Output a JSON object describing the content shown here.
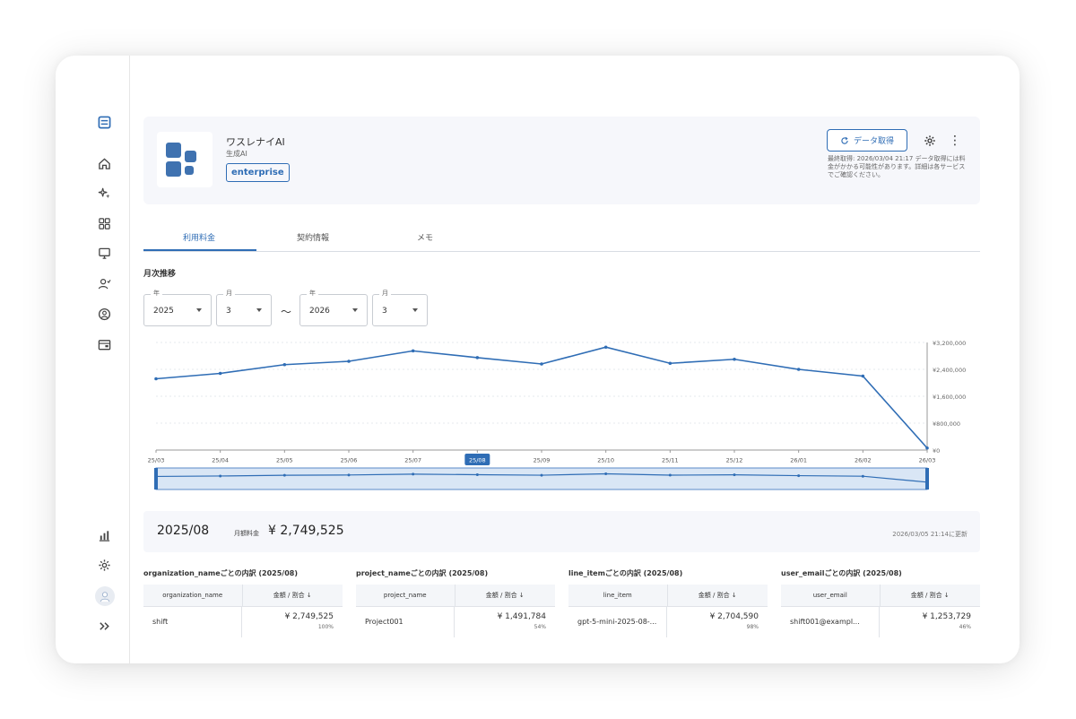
{
  "app": {
    "name": "ワスレナイAI",
    "category": "生成AI",
    "plan_badge": "enterprise",
    "fetch_button": "データ取得",
    "fetch_info": "最終取得: 2026/03/04 21:17 データ取得には料金がかかる可能性があります。詳細は各サービスでご確認ください。"
  },
  "tabs": [
    {
      "label": "利用料金",
      "active": true
    },
    {
      "label": "契約情報",
      "active": false
    },
    {
      "label": "メモ",
      "active": false
    }
  ],
  "section_title": "月次推移",
  "range": {
    "from_year_label": "年",
    "from_year": "2025",
    "from_month_label": "月",
    "from_month": "3",
    "separator": "～",
    "to_year_label": "年",
    "to_year": "2026",
    "to_month_label": "月",
    "to_month": "3"
  },
  "chart_data": {
    "type": "line",
    "categories": [
      "25/03",
      "25/04",
      "25/05",
      "25/06",
      "25/07",
      "25/08",
      "25/09",
      "25/10",
      "25/11",
      "25/12",
      "26/01",
      "26/02",
      "26/03"
    ],
    "values": [
      2120000,
      2280000,
      2540000,
      2640000,
      2950000,
      2749525,
      2560000,
      3060000,
      2580000,
      2700000,
      2400000,
      2200000,
      60000
    ],
    "selected_category": "25/08",
    "y_ticks": [
      "¥0",
      "¥800,000",
      "¥1,600,000",
      "¥2,400,000",
      "¥3,200,000"
    ],
    "ylim": [
      0,
      3200000
    ],
    "y_axis_position": "right",
    "grid": true,
    "color": "#2f6db5"
  },
  "summary": {
    "month": "2025/08",
    "fee_label": "月額料金",
    "fee_value": "¥ 2,749,525",
    "updated": "2026/03/05 21:14に更新"
  },
  "breakdowns": [
    {
      "title": "organization_nameごとの内訳 (2025/08)",
      "col1": "organization_name",
      "col2": "金額 / 割合",
      "rows": [
        {
          "name": "shift",
          "amount": "¥ 2,749,525",
          "pct": "100%"
        }
      ]
    },
    {
      "title": "project_nameごとの内訳 (2025/08)",
      "col1": "project_name",
      "col2": "金額 / 割合",
      "rows": [
        {
          "name": "Project001",
          "amount": "¥ 1,491,784",
          "pct": "54%"
        }
      ]
    },
    {
      "title": "line_itemごとの内訳 (2025/08)",
      "col1": "line_item",
      "col2": "金額 / 割合",
      "rows": [
        {
          "name": "gpt-5-mini-2025-08-...",
          "amount": "¥ 2,704,590",
          "pct": "98%"
        }
      ]
    },
    {
      "title": "user_emailごとの内訳 (2025/08)",
      "col1": "user_email",
      "col2": "金額 / 割合",
      "rows": [
        {
          "name": "shift001@exampl...",
          "amount": "¥ 1,253,729",
          "pct": "46%"
        }
      ]
    }
  ],
  "sidebar_icons": [
    "logo-icon",
    "home-icon",
    "sparkle-icon",
    "grid-icon",
    "monitor-icon",
    "user-check-icon",
    "account-circle-icon",
    "wallet-icon",
    "bar-chart-icon",
    "gear-icon",
    "avatar-icon",
    "chevrons-right-icon"
  ]
}
